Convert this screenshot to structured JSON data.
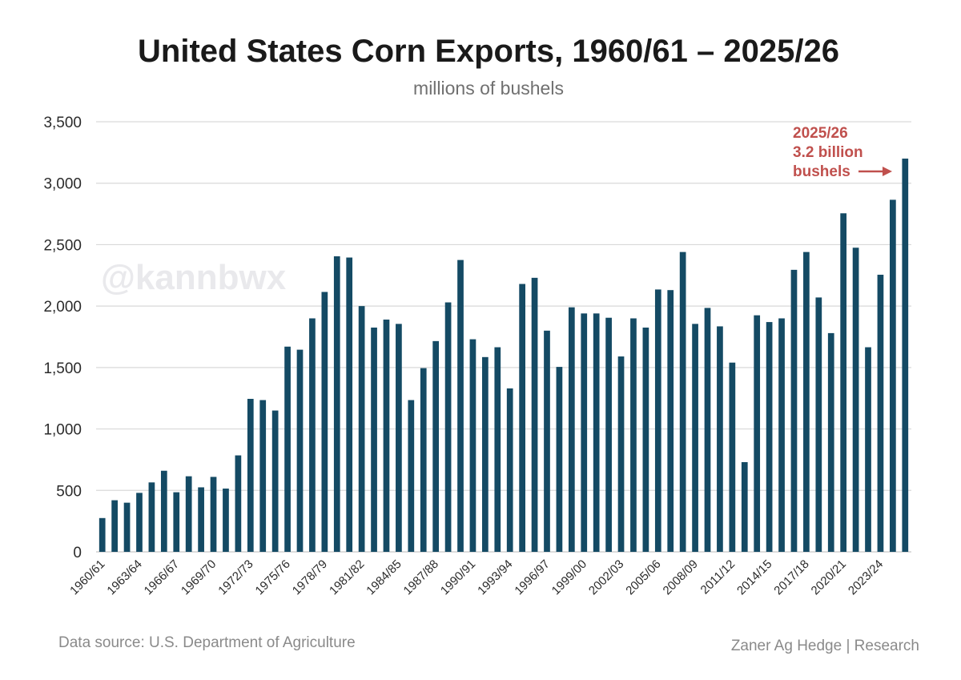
{
  "chart_data": {
    "type": "bar",
    "title": "United States Corn Exports, 1960/61 – 2025/26",
    "subtitle": "millions of bushels",
    "xlabel": "",
    "ylabel": "",
    "ylim": [
      0,
      3500
    ],
    "yticks": [
      0,
      500,
      1000,
      1500,
      2000,
      2500,
      3000,
      3500
    ],
    "ytick_labels": [
      "0",
      "500",
      "1,000",
      "1,500",
      "2,000",
      "2,500",
      "3,000",
      "3,500"
    ],
    "grid": true,
    "bar_color": "#144a64",
    "categories": [
      "1960/61",
      "1961/62",
      "1962/63",
      "1963/64",
      "1964/65",
      "1965/66",
      "1966/67",
      "1967/68",
      "1968/69",
      "1969/70",
      "1970/71",
      "1971/72",
      "1972/73",
      "1973/74",
      "1974/75",
      "1975/76",
      "1976/77",
      "1977/78",
      "1978/79",
      "1979/80",
      "1980/81",
      "1981/82",
      "1982/83",
      "1983/84",
      "1984/85",
      "1985/86",
      "1986/87",
      "1987/88",
      "1988/89",
      "1989/90",
      "1990/91",
      "1991/92",
      "1992/93",
      "1993/94",
      "1994/95",
      "1995/96",
      "1996/97",
      "1997/98",
      "1998/99",
      "1999/00",
      "2000/01",
      "2001/02",
      "2002/03",
      "2003/04",
      "2004/05",
      "2005/06",
      "2006/07",
      "2007/08",
      "2008/09",
      "2009/10",
      "2010/11",
      "2011/12",
      "2012/13",
      "2013/14",
      "2014/15",
      "2015/16",
      "2016/17",
      "2017/18",
      "2018/19",
      "2019/20",
      "2020/21",
      "2021/22",
      "2022/23",
      "2023/24",
      "2024/25",
      "2025/26"
    ],
    "shown_tick_labels": [
      "1960/61",
      "1963/64",
      "1966/67",
      "1969/70",
      "1972/73",
      "1975/76",
      "1978/79",
      "1981/82",
      "1984/85",
      "1987/88",
      "1990/91",
      "1993/94",
      "1996/97",
      "1999/00",
      "2002/03",
      "2005/06",
      "2008/09",
      "2011/12",
      "2014/15",
      "2017/18",
      "2020/21",
      "2023/24"
    ],
    "values": [
      275,
      420,
      400,
      480,
      565,
      660,
      485,
      615,
      525,
      610,
      515,
      785,
      1245,
      1235,
      1150,
      1670,
      1645,
      1900,
      2115,
      2405,
      2395,
      2000,
      1825,
      1890,
      1855,
      1235,
      1495,
      1715,
      2030,
      2375,
      1730,
      1585,
      1665,
      1330,
      2180,
      2230,
      1800,
      1505,
      1990,
      1940,
      1940,
      1905,
      1590,
      1900,
      1825,
      2135,
      2130,
      2440,
      1855,
      1985,
      1835,
      1540,
      730,
      1925,
      1870,
      1900,
      2295,
      2440,
      2070,
      1780,
      2755,
      2475,
      1665,
      2255,
      2865,
      3200
    ]
  },
  "annotation": {
    "lines": [
      "2025/26",
      "3.2 billion",
      "bushels"
    ],
    "color": "#c0504d"
  },
  "watermark": "@kannbwx",
  "footer": {
    "source": "Data source: U.S. Department of Agriculture",
    "credit": "Zaner Ag Hedge | Research"
  }
}
